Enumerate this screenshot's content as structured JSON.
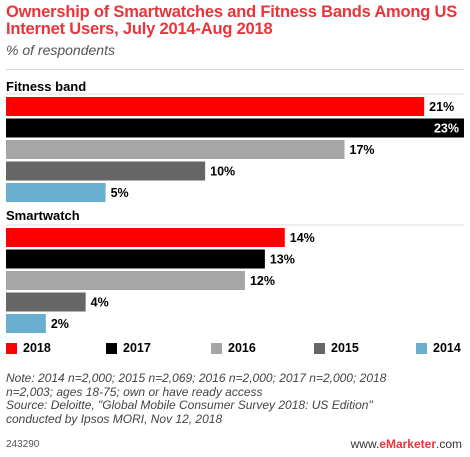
{
  "header": {
    "title": "Ownership of Smartwatches and Fitness Bands Among US Internet Users, July 2014-Aug 2018",
    "subtitle": "% of respondents"
  },
  "chart_data": {
    "type": "bar",
    "orientation": "horizontal",
    "xlim": [
      0,
      23
    ],
    "groups": [
      {
        "name": "Fitness band",
        "bars": [
          {
            "series": "2018",
            "value": 21,
            "label": "21%"
          },
          {
            "series": "2017",
            "value": 23,
            "label": "23%"
          },
          {
            "series": "2016",
            "value": 17,
            "label": "17%"
          },
          {
            "series": "2015",
            "value": 10,
            "label": "10%"
          },
          {
            "series": "2014",
            "value": 5,
            "label": "5%"
          }
        ]
      },
      {
        "name": "Smartwatch",
        "bars": [
          {
            "series": "2018",
            "value": 14,
            "label": "14%"
          },
          {
            "series": "2017",
            "value": 13,
            "label": "13%"
          },
          {
            "series": "2016",
            "value": 12,
            "label": "12%"
          },
          {
            "series": "2015",
            "value": 4,
            "label": "4%"
          },
          {
            "series": "2014",
            "value": 2,
            "label": "2%"
          }
        ]
      }
    ],
    "legend": [
      {
        "name": "2018",
        "color": "#ff0000"
      },
      {
        "name": "2017",
        "color": "#000000"
      },
      {
        "name": "2016",
        "color": "#a6a6a6"
      },
      {
        "name": "2015",
        "color": "#666666"
      },
      {
        "name": "2014",
        "color": "#6aaed0"
      }
    ],
    "legend_position": "bottom",
    "label_style": {
      "inside_label_color": "#ffffff",
      "outside_label_color": "#000000"
    }
  },
  "notes": {
    "line1": "Note: 2014 n=2,000; 2015 n=2,069; 2016 n=2,000; 2017 n=2,000; 2018",
    "line2": "n=2,003; ages 18-75; own or have ready access",
    "line3": "Source: Deloitte, \"Global Mobile Consumer Survey 2018: US Edition\"",
    "line4": "conducted by Ipsos MORI, Nov 12, 2018"
  },
  "footer": {
    "id": "243290",
    "brand_prefix": "www.",
    "brand_name": "eMarketer",
    "brand_suffix": ".com"
  }
}
